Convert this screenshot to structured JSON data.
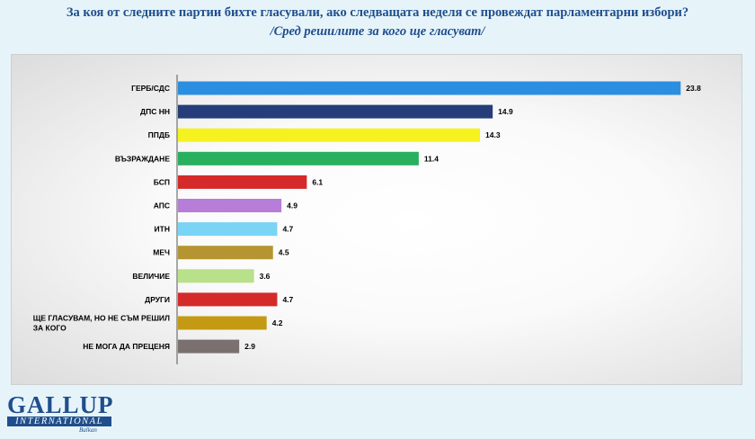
{
  "title_line1": "За коя от следните партии бихте  гласували,  ако следващата неделя се провеждат парламентарни избори?",
  "title_line2": "/Сред решилите за кого ще гласуват/",
  "logo": {
    "main": "GALLUP",
    "band": "INTERNATIONAL",
    "small": "Balkan"
  },
  "colors": {
    "title": "#1f4e8c",
    "background": "#e6f4fa"
  },
  "chart_data": {
    "type": "bar",
    "orientation": "horizontal",
    "grid": false,
    "categories": [
      [
        "ГЕРБ/СДС"
      ],
      [
        "ДПС НН"
      ],
      [
        "ППДБ"
      ],
      [
        "ВЪЗРАЖДАНЕ"
      ],
      [
        "БСП"
      ],
      [
        "АПС"
      ],
      [
        "ИТН"
      ],
      [
        "МЕЧ"
      ],
      [
        "ВЕЛИЧИЕ"
      ],
      [
        "ДРУГИ"
      ],
      [
        "ЩЕ ГЛАСУВАМ, НО НЕ СЪМ РЕШИЛ",
        "ЗА КОГО"
      ],
      [
        "НЕ МОГА ДА ПРЕЦЕНЯ"
      ]
    ],
    "values": [
      23.8,
      14.9,
      14.3,
      11.4,
      6.1,
      4.9,
      4.7,
      4.5,
      3.6,
      4.7,
      4.2,
      2.9
    ],
    "value_labels": [
      "23.8",
      "14.9",
      "14.3",
      "11.4",
      "6.1",
      "4.9",
      "4.7",
      "4.5",
      "3.6",
      "4.7",
      "4.2",
      "2.9"
    ],
    "colors": [
      "#2b8ee0",
      "#253e7a",
      "#f6f21f",
      "#28b05e",
      "#d42a2a",
      "#b67ed8",
      "#79d4f5",
      "#b59532",
      "#b9e08a",
      "#d42a2a",
      "#c49a12",
      "#7a7070"
    ],
    "xlim": [
      0,
      24
    ]
  }
}
